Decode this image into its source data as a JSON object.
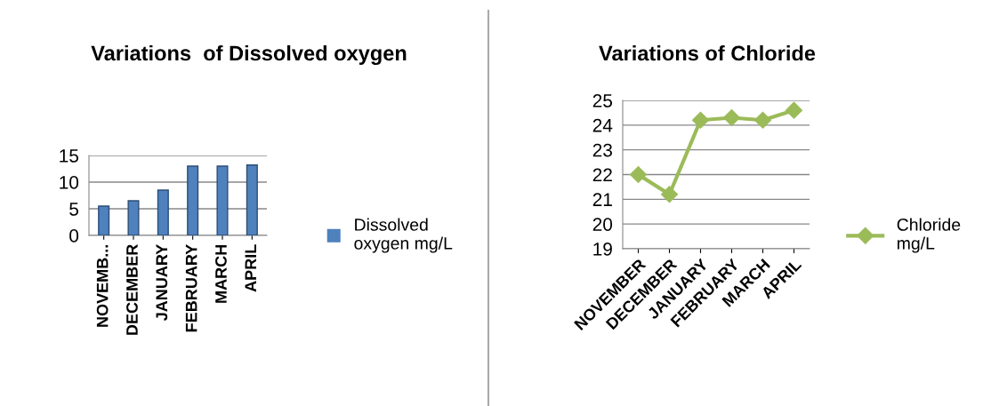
{
  "chart_data": [
    {
      "type": "bar",
      "title": "Variations  of Dissolved oxygen",
      "categories": [
        "NOVEMB...",
        "DECEMBER",
        "JANUARY",
        "FEBRUARY",
        "MARCH",
        "APRIL"
      ],
      "series": [
        {
          "name": "Dissolved oxygen mg/L",
          "color": "#4f81bd",
          "values": [
            5.5,
            6.5,
            8.5,
            13,
            13,
            13.2
          ]
        }
      ],
      "ylim": [
        0,
        15
      ],
      "yticks": [
        0,
        5,
        10,
        15
      ],
      "grid": "y",
      "legend": "right"
    },
    {
      "type": "line",
      "title": "Variations of Chloride",
      "categories": [
        "NOVEMBER",
        "DECEMBER",
        "JANUARY",
        "FEBRUARY",
        "MARCH",
        "APRIL"
      ],
      "series": [
        {
          "name": "Chloride mg/L",
          "color": "#9bbb59",
          "values": [
            22,
            21.2,
            24.2,
            24.3,
            24.2,
            24.6
          ]
        }
      ],
      "ylim": [
        19,
        25
      ],
      "yticks": [
        19,
        20,
        21,
        22,
        23,
        24,
        25
      ],
      "grid": "y",
      "legend": "right",
      "marker": "diamond"
    }
  ]
}
